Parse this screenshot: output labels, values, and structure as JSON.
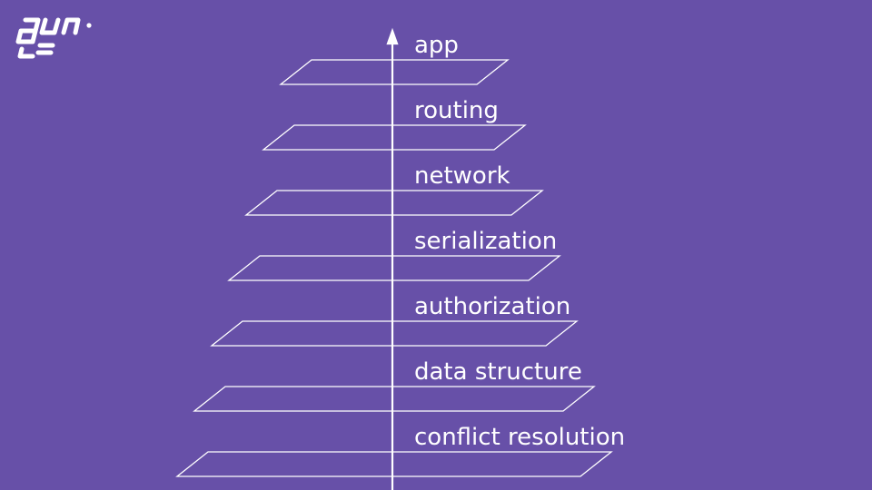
{
  "logo": {
    "icon": "gun-logo-icon"
  },
  "colors": {
    "background": "#6750a8",
    "stroke": "#ffffff",
    "text": "#ffffff"
  },
  "stack": {
    "direction": "upward-arrow",
    "layers": [
      {
        "label": "app"
      },
      {
        "label": "routing"
      },
      {
        "label": "network"
      },
      {
        "label": "serialization"
      },
      {
        "label": "authorization"
      },
      {
        "label": "data structure"
      },
      {
        "label": "conflict resolution"
      }
    ]
  }
}
